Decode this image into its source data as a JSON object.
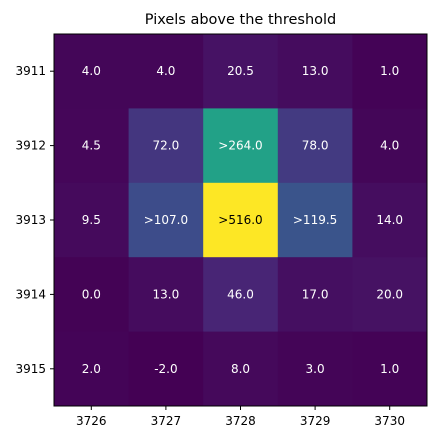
{
  "chart_data": {
    "type": "heatmap",
    "title": "Pixels above the threshold",
    "xlabel": "",
    "ylabel": "",
    "x_categories": [
      "3726",
      "3727",
      "3728",
      "3729",
      "3730"
    ],
    "y_categories": [
      "3911",
      "3912",
      "3913",
      "3914",
      "3915"
    ],
    "values": [
      [
        4.0,
        4.0,
        20.5,
        13.0,
        1.0
      ],
      [
        4.5,
        72.0,
        264.0,
        78.0,
        4.0
      ],
      [
        9.5,
        107.0,
        516.0,
        119.5,
        14.0
      ],
      [
        0.0,
        13.0,
        46.0,
        17.0,
        20.0
      ],
      [
        2.0,
        -2.0,
        8.0,
        3.0,
        1.0
      ]
    ],
    "cell_labels": [
      [
        "4.0",
        "4.0",
        "20.5",
        "13.0",
        "1.0"
      ],
      [
        "4.5",
        "72.0",
        ">264.0",
        "78.0",
        "4.0"
      ],
      [
        "9.5",
        ">107.0",
        ">516.0",
        ">119.5",
        "14.0"
      ],
      [
        "0.0",
        "13.0",
        "46.0",
        "17.0",
        "20.0"
      ],
      [
        "2.0",
        "-2.0",
        "8.0",
        "3.0",
        "1.0"
      ]
    ],
    "colormap": "viridis",
    "grid": false,
    "legend": "none"
  }
}
